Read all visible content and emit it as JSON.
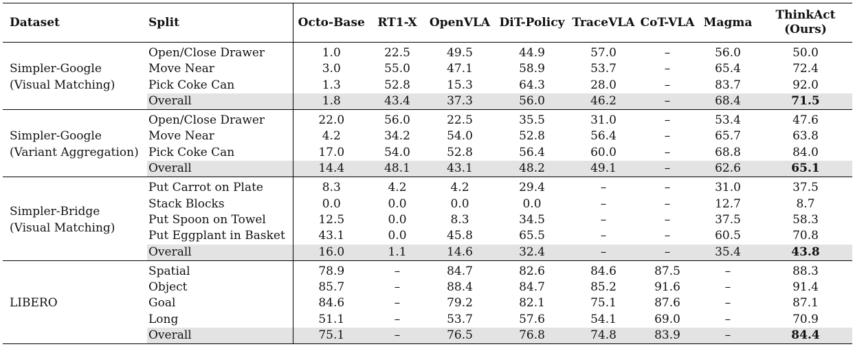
{
  "headers": {
    "dataset": "Dataset",
    "split": "Split",
    "models": [
      "Octo-Base",
      "RT1-X",
      "OpenVLA",
      "DiT-Policy",
      "TraceVLA",
      "CoT-VLA",
      "Magma"
    ],
    "ours_line1": "ThinkAct",
    "ours_line2": "(Ours)"
  },
  "groups": [
    {
      "dataset_line1": "Simpler-Google",
      "dataset_line2": "(Visual Matching)",
      "rows": [
        {
          "split": "Open/Close Drawer",
          "values": [
            "1.0",
            "22.5",
            "49.5",
            "44.9",
            "57.0",
            "–",
            "56.0",
            "50.0"
          ]
        },
        {
          "split": "Move Near",
          "values": [
            "3.0",
            "55.0",
            "47.1",
            "58.9",
            "53.7",
            "–",
            "65.4",
            "72.4"
          ]
        },
        {
          "split": "Pick Coke Can",
          "values": [
            "1.3",
            "52.8",
            "15.3",
            "64.3",
            "28.0",
            "–",
            "83.7",
            "92.0"
          ]
        },
        {
          "split": "Overall",
          "values": [
            "1.8",
            "43.4",
            "37.3",
            "56.0",
            "46.2",
            "–",
            "68.4",
            "71.5"
          ]
        }
      ]
    },
    {
      "dataset_line1": "Simpler-Google",
      "dataset_line2": "(Variant Aggregation)",
      "rows": [
        {
          "split": "Open/Close Drawer",
          "values": [
            "22.0",
            "56.0",
            "22.5",
            "35.5",
            "31.0",
            "–",
            "53.4",
            "47.6"
          ]
        },
        {
          "split": "Move Near",
          "values": [
            "4.2",
            "34.2",
            "54.0",
            "52.8",
            "56.4",
            "–",
            "65.7",
            "63.8"
          ]
        },
        {
          "split": "Pick Coke Can",
          "values": [
            "17.0",
            "54.0",
            "52.8",
            "56.4",
            "60.0",
            "–",
            "68.8",
            "84.0"
          ]
        },
        {
          "split": "Overall",
          "values": [
            "14.4",
            "48.1",
            "43.1",
            "48.2",
            "49.1",
            "–",
            "62.6",
            "65.1"
          ]
        }
      ]
    },
    {
      "dataset_line1": "Simpler-Bridge",
      "dataset_line2": "(Visual Matching)",
      "rows": [
        {
          "split": "Put Carrot on Plate",
          "values": [
            "8.3",
            "4.2",
            "4.2",
            "29.4",
            "–",
            "–",
            "31.0",
            "37.5"
          ]
        },
        {
          "split": "Stack Blocks",
          "values": [
            "0.0",
            "0.0",
            "0.0",
            "0.0",
            "–",
            "–",
            "12.7",
            "8.7"
          ]
        },
        {
          "split": "Put Spoon on Towel",
          "values": [
            "12.5",
            "0.0",
            "8.3",
            "34.5",
            "–",
            "–",
            "37.5",
            "58.3"
          ]
        },
        {
          "split": "Put Eggplant in Basket",
          "values": [
            "43.1",
            "0.0",
            "45.8",
            "65.5",
            "–",
            "–",
            "60.5",
            "70.8"
          ]
        },
        {
          "split": "Overall",
          "values": [
            "16.0",
            "1.1",
            "14.6",
            "32.4",
            "–",
            "–",
            "35.4",
            "43.8"
          ]
        }
      ]
    },
    {
      "dataset_line1": "LIBERO",
      "dataset_line2": "",
      "rows": [
        {
          "split": "Spatial",
          "values": [
            "78.9",
            "–",
            "84.7",
            "82.6",
            "84.6",
            "87.5",
            "–",
            "88.3"
          ]
        },
        {
          "split": "Object",
          "values": [
            "85.7",
            "–",
            "88.4",
            "84.7",
            "85.2",
            "91.6",
            "–",
            "91.4"
          ]
        },
        {
          "split": "Goal",
          "values": [
            "84.6",
            "–",
            "79.2",
            "82.1",
            "75.1",
            "87.6",
            "–",
            "87.1"
          ]
        },
        {
          "split": "Long",
          "values": [
            "51.1",
            "–",
            "53.7",
            "57.6",
            "54.1",
            "69.0",
            "–",
            "70.9"
          ]
        },
        {
          "split": "Overall",
          "values": [
            "75.1",
            "–",
            "76.5",
            "76.8",
            "74.8",
            "83.9",
            "–",
            "84.4"
          ]
        }
      ]
    }
  ]
}
